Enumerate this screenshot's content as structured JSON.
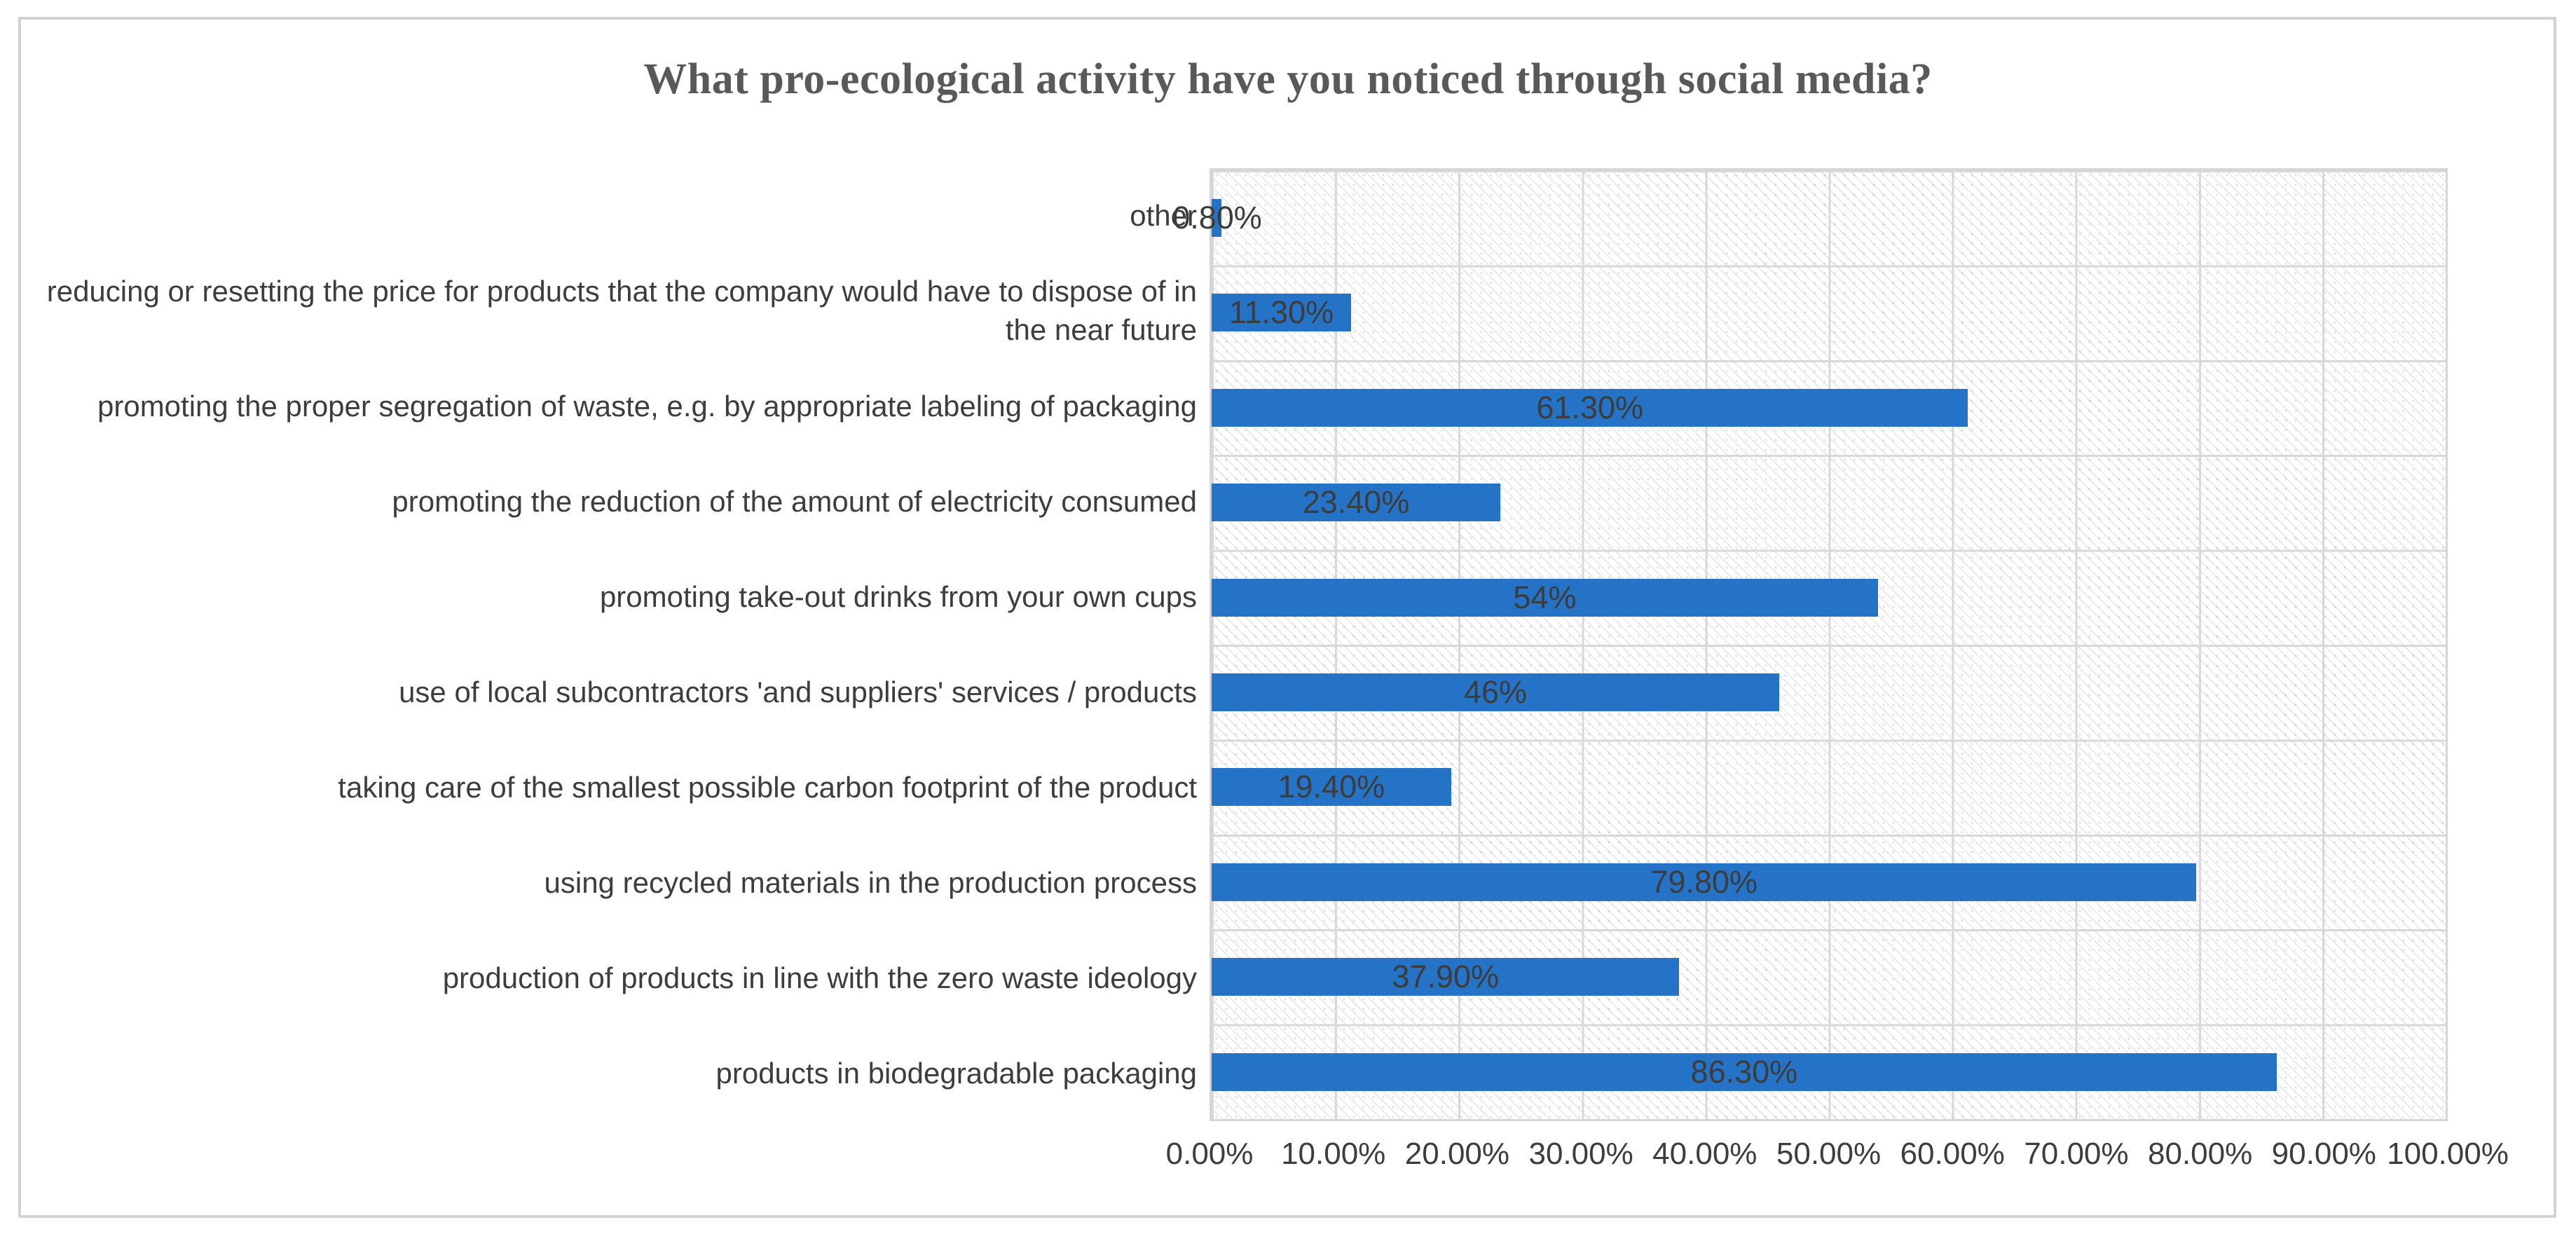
{
  "chart_data": {
    "type": "bar",
    "orientation": "horizontal",
    "title": "What pro-ecological activity have you noticed through social media?",
    "categories": [
      "other",
      "reducing or resetting the price for products that the company would have to dispose of in the near future",
      "promoting the proper segregation of waste, e.g. by appropriate labeling of packaging",
      "promoting the reduction of the amount of electricity consumed",
      "promoting take-out drinks from your own cups",
      "use of local subcontractors 'and suppliers' services / products",
      "taking care of the smallest possible carbon footprint of the product",
      "using recycled materials in the production process",
      "production of products in line with the zero waste ideology",
      "products in biodegradable packaging"
    ],
    "values": [
      0.8,
      11.3,
      61.3,
      23.4,
      54,
      46,
      19.4,
      79.8,
      37.9,
      86.3
    ],
    "value_labels": [
      "0.80%",
      "11.30%",
      "61.30%",
      "23.40%",
      "54%",
      "46%",
      "19.40%",
      "79.80%",
      "37.90%",
      "86.30%"
    ],
    "x_tick_labels": [
      "0.00%",
      "10.00%",
      "20.00%",
      "30.00%",
      "40.00%",
      "50.00%",
      "60.00%",
      "70.00%",
      "80.00%",
      "90.00%",
      "100.00%"
    ],
    "xlim": [
      0,
      100
    ],
    "grid": true,
    "legend": "none",
    "plot_background": "hatched-pattern",
    "bar_color": "#2573C6",
    "gridline_color": "#D8D8D8",
    "label_color": "#3D3D3D",
    "title_color": "#595959"
  }
}
